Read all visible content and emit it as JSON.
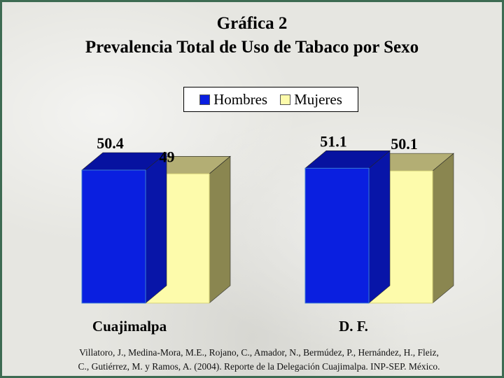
{
  "titles": {
    "line1": "Gráfica 2",
    "line2": "Prevalencia Total de Uso de Tabaco por Sexo"
  },
  "legend": {
    "items": [
      {
        "label": "Hombres",
        "color": "#0a1fe0"
      },
      {
        "label": "Mujeres",
        "color": "#fdfbab"
      }
    ]
  },
  "chart_data": {
    "type": "bar",
    "categories": [
      "Cuajimalpa",
      "D. F."
    ],
    "series": [
      {
        "name": "Hombres",
        "values": [
          50.4,
          51.1
        ],
        "labels": [
          "50.4",
          "51.1"
        ],
        "color": "#0a1fe0"
      },
      {
        "name": "Mujeres",
        "values": [
          49,
          50.1
        ],
        "labels": [
          "49",
          "50.1"
        ],
        "color": "#fdfbab"
      }
    ],
    "legend": "top-center",
    "grid": false
  },
  "source": {
    "line1": "Villatoro, J., Medina-Mora, M.E., Rojano, C., Amador, N., Bermúdez, P., Hernández, H., Fleiz,",
    "line2": "C., Gutiérrez, M. y Ramos, A. (2004). Reporte de la Delegación Cuajimalpa. INP-SEP. México."
  }
}
